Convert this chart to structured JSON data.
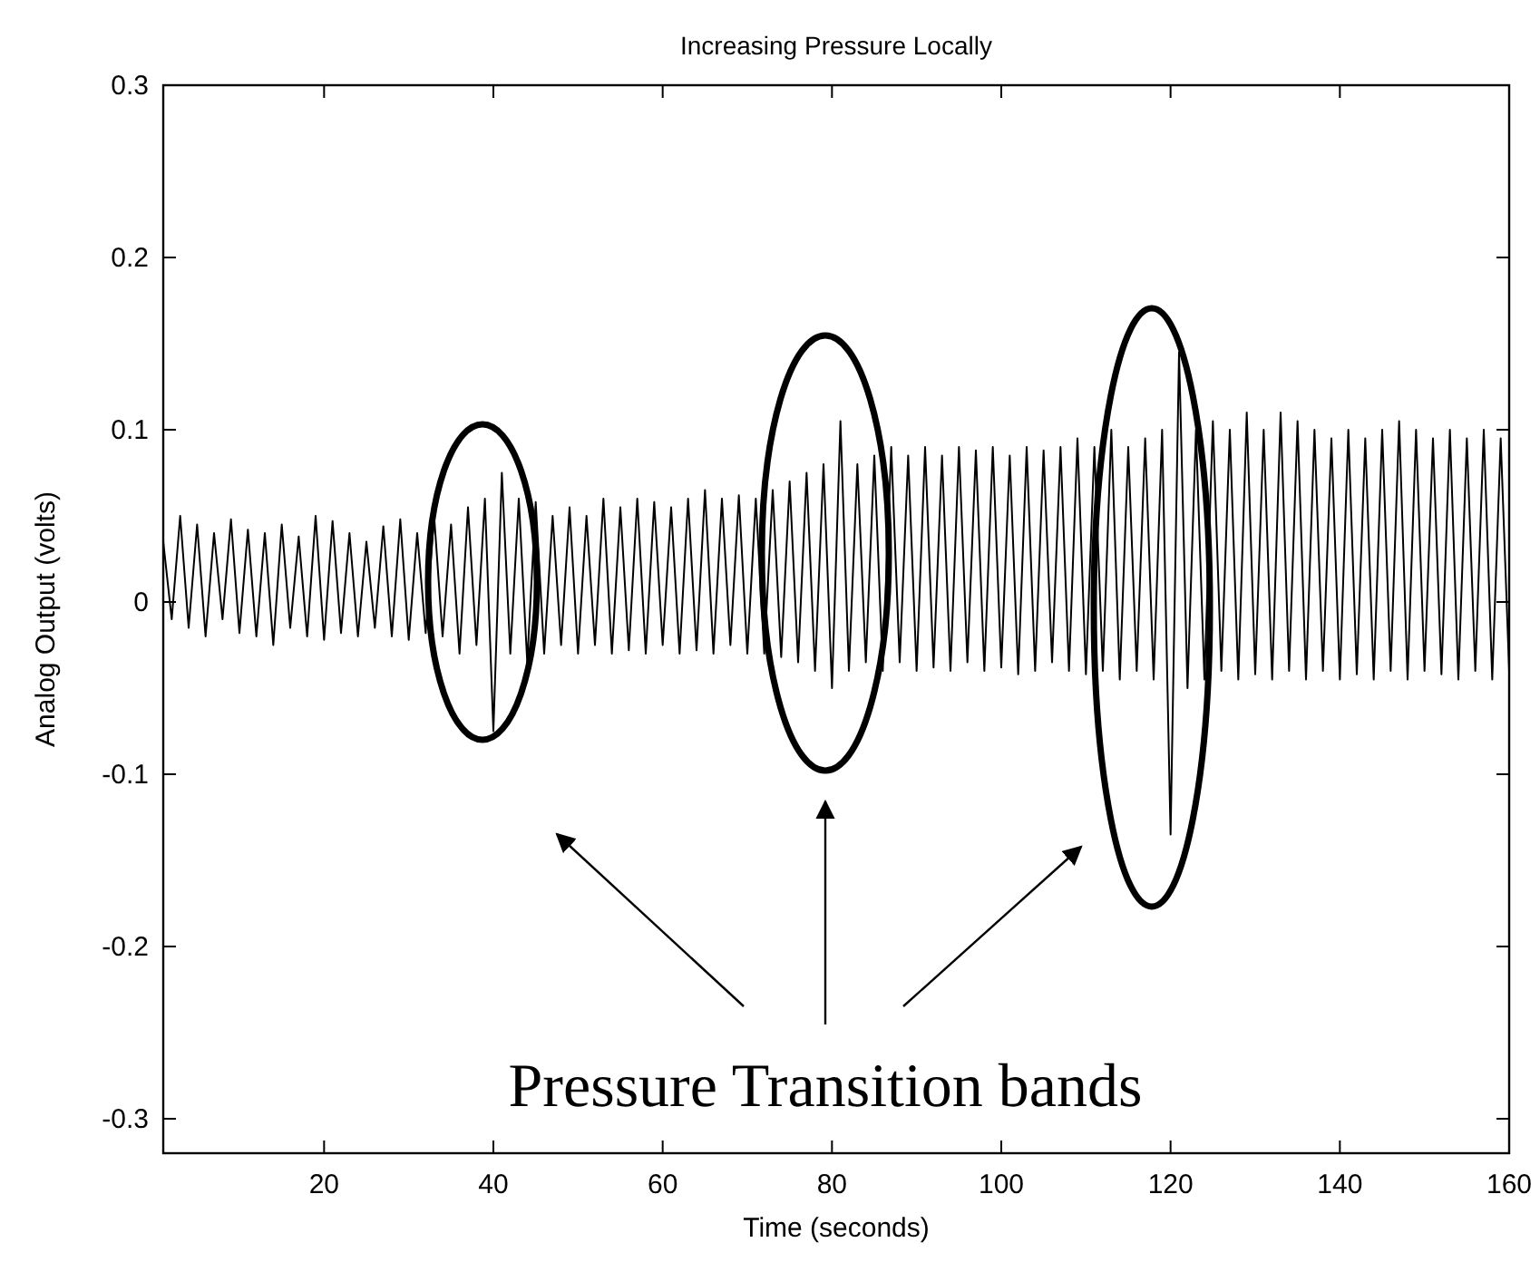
{
  "chart_data": {
    "type": "line",
    "title": "Increasing Pressure Locally",
    "xlabel": "Time (seconds)",
    "ylabel": "Analog Output (volts)",
    "annotations": [
      "Pressure Transition bands"
    ],
    "xlim": [
      1,
      160
    ],
    "xticks": [
      20,
      40,
      60,
      80,
      100,
      120,
      140,
      160
    ],
    "ylim": [
      -0.32,
      0.3
    ],
    "yticks": [
      -0.3,
      -0.2,
      -0.1,
      0,
      0.1,
      0.2,
      0.3
    ],
    "grid": false,
    "marker": "none",
    "line_style": "solid",
    "series": [
      {
        "color": "#000000",
        "x": [
          1,
          2,
          3,
          4,
          5,
          6,
          7,
          8,
          9,
          10,
          11,
          12,
          13,
          14,
          15,
          16,
          17,
          18,
          19,
          20,
          21,
          22,
          23,
          24,
          25,
          26,
          27,
          28,
          29,
          30,
          31,
          32,
          33,
          34,
          35,
          36,
          37,
          38,
          39,
          40,
          41,
          42,
          43,
          44,
          45,
          46,
          47,
          48,
          49,
          50,
          51,
          52,
          53,
          54,
          55,
          56,
          57,
          58,
          59,
          60,
          61,
          62,
          63,
          64,
          65,
          66,
          67,
          68,
          69,
          70,
          71,
          72,
          73,
          74,
          75,
          76,
          77,
          78,
          79,
          80,
          81,
          82,
          83,
          84,
          85,
          86,
          87,
          88,
          89,
          90,
          91,
          92,
          93,
          94,
          95,
          96,
          97,
          98,
          99,
          100,
          101,
          102,
          103,
          104,
          105,
          106,
          107,
          108,
          109,
          110,
          111,
          112,
          113,
          114,
          115,
          116,
          117,
          118,
          119,
          120,
          121,
          122,
          123,
          124,
          125,
          126,
          127,
          128,
          129,
          130,
          131,
          132,
          133,
          134,
          135,
          136,
          137,
          138,
          139,
          140,
          141,
          142,
          143,
          144,
          145,
          146,
          147,
          148,
          149,
          150,
          151,
          152,
          153,
          154,
          155,
          156,
          157,
          158,
          159,
          160
        ],
        "values": [
          0.035,
          -0.01,
          0.05,
          -0.015,
          0.045,
          -0.02,
          0.04,
          -0.01,
          0.048,
          -0.018,
          0.042,
          -0.02,
          0.04,
          -0.025,
          0.045,
          -0.015,
          0.038,
          -0.02,
          0.05,
          -0.022,
          0.047,
          -0.018,
          0.04,
          -0.02,
          0.035,
          -0.015,
          0.044,
          -0.02,
          0.048,
          -0.022,
          0.04,
          -0.018,
          0.05,
          -0.02,
          0.045,
          -0.03,
          0.055,
          -0.025,
          0.06,
          -0.075,
          0.075,
          -0.03,
          0.06,
          -0.035,
          0.058,
          -0.03,
          0.05,
          -0.025,
          0.055,
          -0.03,
          0.05,
          -0.025,
          0.06,
          -0.03,
          0.055,
          -0.028,
          0.06,
          -0.03,
          0.058,
          -0.025,
          0.055,
          -0.03,
          0.06,
          -0.028,
          0.065,
          -0.03,
          0.06,
          -0.025,
          0.062,
          -0.03,
          0.06,
          -0.03,
          0.065,
          -0.032,
          0.07,
          -0.035,
          0.075,
          -0.04,
          0.08,
          -0.05,
          0.105,
          -0.04,
          0.08,
          -0.035,
          0.085,
          -0.04,
          0.09,
          -0.035,
          0.085,
          -0.04,
          0.09,
          -0.038,
          0.085,
          -0.04,
          0.09,
          -0.035,
          0.088,
          -0.04,
          0.09,
          -0.038,
          0.085,
          -0.042,
          0.09,
          -0.04,
          0.088,
          -0.035,
          0.09,
          -0.04,
          0.095,
          -0.042,
          0.09,
          -0.04,
          0.1,
          -0.045,
          0.09,
          -0.04,
          0.095,
          -0.045,
          0.1,
          -0.135,
          0.145,
          -0.05,
          0.1,
          -0.045,
          0.105,
          -0.04,
          0.1,
          -0.045,
          0.11,
          -0.042,
          0.1,
          -0.045,
          0.11,
          -0.04,
          0.105,
          -0.045,
          0.1,
          -0.04,
          0.095,
          -0.045,
          0.1,
          -0.042,
          0.095,
          -0.045,
          0.1,
          -0.04,
          0.105,
          -0.045,
          0.1,
          -0.04,
          0.095,
          -0.042,
          0.1,
          -0.045,
          0.095,
          -0.04,
          0.1,
          -0.045,
          0.095,
          -0.04
        ]
      }
    ]
  }
}
